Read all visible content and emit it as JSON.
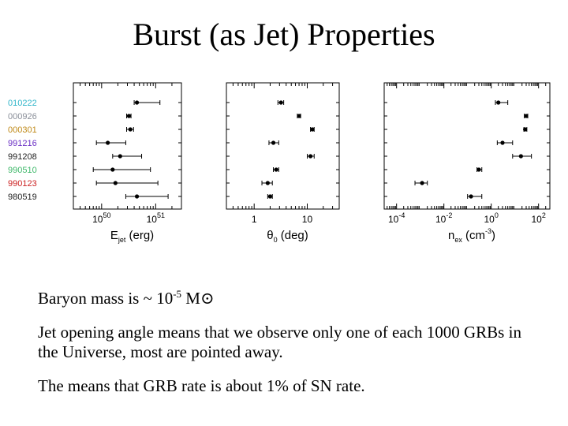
{
  "title": "Burst (as Jet) Properties",
  "grbs": [
    {
      "name": "010222",
      "color": "#2fb5c9"
    },
    {
      "name": "000926",
      "color": "#8a8f99"
    },
    {
      "name": "000301",
      "color": "#c08a18"
    },
    {
      "name": "991216",
      "color": "#6a2fc4"
    },
    {
      "name": "991208",
      "color": "#222222"
    },
    {
      "name": "990510",
      "color": "#3fb86a"
    },
    {
      "name": "990123",
      "color": "#cc2222"
    },
    {
      "name": "980519",
      "color": "#222222"
    }
  ],
  "chart_data": [
    {
      "type": "scatter",
      "scale": "log",
      "xlim": [
        3e+49,
        3e+51
      ],
      "tick_values": [
        1e+50,
        1e+51
      ],
      "tick_labels": [
        {
          "base": "10",
          "exp": "50"
        },
        {
          "base": "10",
          "exp": "51"
        }
      ],
      "xlabel": {
        "main": "E",
        "sub": "jet",
        "rest": " (erg)"
      },
      "points": [
        {
          "grb": "010222",
          "x": 4.5e+50,
          "lo": 4e+50,
          "hi": 1.2e+51
        },
        {
          "grb": "000926",
          "x": 3.2e+50,
          "lo": 2.9e+50,
          "hi": 3.5e+50
        },
        {
          "grb": "000301",
          "x": 3.4e+50,
          "lo": 2.9e+50,
          "hi": 3.9e+50
        },
        {
          "grb": "991216",
          "x": 1.3e+50,
          "lo": 8e+49,
          "hi": 2.8e+50
        },
        {
          "grb": "991208",
          "x": 2.2e+50,
          "lo": 1.6e+50,
          "hi": 5.5e+50
        },
        {
          "grb": "990510",
          "x": 1.6e+50,
          "lo": 7e+49,
          "hi": 8e+50
        },
        {
          "grb": "990123",
          "x": 1.8e+50,
          "lo": 8e+49,
          "hi": 1.1e+51
        },
        {
          "grb": "980519",
          "x": 4.5e+50,
          "lo": 2.8e+50,
          "hi": 1.7e+51
        }
      ]
    },
    {
      "type": "scatter",
      "scale": "log",
      "xlim": [
        0.3,
        40
      ],
      "tick_values": [
        1,
        10
      ],
      "tick_labels": [
        {
          "base": "1",
          "exp": ""
        },
        {
          "base": "10",
          "exp": ""
        }
      ],
      "xlabel": {
        "main": "θ",
        "sub": "0",
        "rest": " (deg)"
      },
      "points": [
        {
          "grb": "010222",
          "x": 3.2,
          "lo": 2.8,
          "hi": 3.6
        },
        {
          "grb": "000926",
          "x": 7.0,
          "lo": 6.5,
          "hi": 7.5
        },
        {
          "grb": "000301",
          "x": 12.5,
          "lo": 11.5,
          "hi": 13.5
        },
        {
          "grb": "991216",
          "x": 2.3,
          "lo": 1.9,
          "hi": 2.9
        },
        {
          "grb": "991208",
          "x": 11.5,
          "lo": 10,
          "hi": 13.5
        },
        {
          "grb": "990510",
          "x": 2.6,
          "lo": 2.3,
          "hi": 2.9
        },
        {
          "grb": "990123",
          "x": 1.8,
          "lo": 1.4,
          "hi": 2.2
        },
        {
          "grb": "980519",
          "x": 2.0,
          "lo": 1.8,
          "hi": 2.2
        }
      ]
    },
    {
      "type": "scatter",
      "scale": "log",
      "xlim": [
        3e-05,
        300
      ],
      "tick_values": [
        0.0001,
        0.01,
        1,
        100
      ],
      "tick_labels": [
        {
          "base": "10",
          "exp": "-4"
        },
        {
          "base": "10",
          "exp": "-2"
        },
        {
          "base": "10",
          "exp": "0"
        },
        {
          "base": "10",
          "exp": "2"
        }
      ],
      "xlabel": {
        "main": "n",
        "sub": "ex",
        "rest": " (cm",
        "exp": "-3",
        "tail": ")"
      },
      "points": [
        {
          "grb": "010222",
          "x": 2.0,
          "lo": 1.5,
          "hi": 5.0
        },
        {
          "grb": "000926",
          "x": 30,
          "lo": 25,
          "hi": 35
        },
        {
          "grb": "000301",
          "x": 27,
          "lo": 24,
          "hi": 32
        },
        {
          "grb": "991216",
          "x": 3.0,
          "lo": 1.8,
          "hi": 8.0
        },
        {
          "grb": "991208",
          "x": 18,
          "lo": 8.0,
          "hi": 50
        },
        {
          "grb": "990510",
          "x": 0.3,
          "lo": 0.25,
          "hi": 0.4
        },
        {
          "grb": "990123",
          "x": 0.0012,
          "lo": 0.0006,
          "hi": 0.002
        },
        {
          "grb": "980519",
          "x": 0.14,
          "lo": 0.1,
          "hi": 0.4
        }
      ]
    }
  ],
  "bullets": {
    "b1_text": "Baryon mass is ~ 10",
    "b1_exp": "-5",
    "b1_unit": " M",
    "b1_symbol": "⊙",
    "b2": "Jet opening angle means that we observe only one of each 1000 GRBs in the Universe, most are pointed away.",
    "b3": "The means that GRB rate is about 1% of SN rate."
  }
}
